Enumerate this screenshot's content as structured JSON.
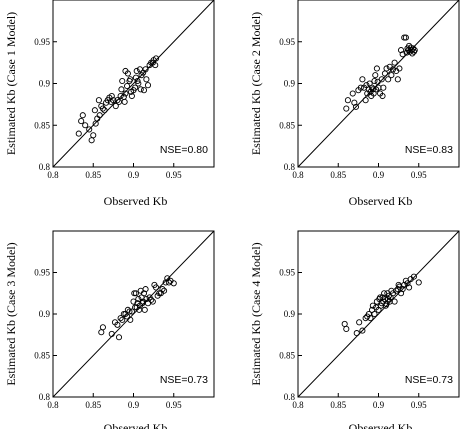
{
  "chart_data": [
    {
      "type": "scatter",
      "xlabel": "Observed Kb",
      "ylabel": "Estimated Kb (Case 1 Model)",
      "annotation": "NSE=0.80",
      "xlim": [
        0.8,
        1.0
      ],
      "ylim": [
        0.8,
        1.0
      ],
      "xticks": [
        "0.8",
        "0.85",
        "0.9",
        "0.95"
      ],
      "yticks": [
        "0.8",
        "0.85",
        "0.9",
        "0.95"
      ],
      "reference_line": "1:1",
      "x": [
        0.832,
        0.835,
        0.837,
        0.84,
        0.845,
        0.848,
        0.85,
        0.852,
        0.853,
        0.855,
        0.857,
        0.858,
        0.86,
        0.862,
        0.864,
        0.866,
        0.868,
        0.87,
        0.872,
        0.873,
        0.875,
        0.878,
        0.88,
        0.882,
        0.884,
        0.885,
        0.886,
        0.888,
        0.889,
        0.89,
        0.89,
        0.892,
        0.893,
        0.895,
        0.896,
        0.897,
        0.898,
        0.9,
        0.902,
        0.903,
        0.904,
        0.905,
        0.906,
        0.908,
        0.909,
        0.91,
        0.912,
        0.913,
        0.915,
        0.916,
        0.918,
        0.92,
        0.922,
        0.924,
        0.925,
        0.927,
        0.928
      ],
      "y": [
        0.84,
        0.855,
        0.862,
        0.85,
        0.845,
        0.832,
        0.838,
        0.868,
        0.852,
        0.858,
        0.88,
        0.862,
        0.873,
        0.87,
        0.868,
        0.877,
        0.88,
        0.883,
        0.878,
        0.885,
        0.88,
        0.873,
        0.88,
        0.878,
        0.885,
        0.893,
        0.903,
        0.884,
        0.878,
        0.888,
        0.915,
        0.897,
        0.912,
        0.903,
        0.905,
        0.89,
        0.885,
        0.892,
        0.895,
        0.907,
        0.915,
        0.903,
        0.9,
        0.917,
        0.893,
        0.91,
        0.913,
        0.892,
        0.917,
        0.905,
        0.898,
        0.922,
        0.925,
        0.925,
        0.928,
        0.922,
        0.93
      ]
    },
    {
      "type": "scatter",
      "xlabel": "Observed Kb",
      "ylabel": "Estimated Kb (Case 2 Model)",
      "annotation": "NSE=0.83",
      "xlim": [
        0.8,
        1.0
      ],
      "ylim": [
        0.8,
        1.0
      ],
      "xticks": [
        "0.8",
        "0.85",
        "0.9",
        "0.95"
      ],
      "yticks": [
        "0.8",
        "0.85",
        "0.9",
        "0.95"
      ],
      "reference_line": "1:1",
      "x": [
        0.86,
        0.862,
        0.868,
        0.87,
        0.872,
        0.875,
        0.878,
        0.88,
        0.882,
        0.884,
        0.885,
        0.886,
        0.888,
        0.889,
        0.89,
        0.891,
        0.892,
        0.893,
        0.894,
        0.895,
        0.896,
        0.897,
        0.898,
        0.899,
        0.9,
        0.902,
        0.904,
        0.905,
        0.906,
        0.908,
        0.91,
        0.912,
        0.914,
        0.916,
        0.918,
        0.92,
        0.922,
        0.924,
        0.926,
        0.928,
        0.93,
        0.932,
        0.934,
        0.935,
        0.936,
        0.937,
        0.938,
        0.939,
        0.94,
        0.941,
        0.942,
        0.943,
        0.944,
        0.945
      ],
      "y": [
        0.87,
        0.88,
        0.888,
        0.877,
        0.872,
        0.892,
        0.895,
        0.905,
        0.895,
        0.88,
        0.898,
        0.888,
        0.893,
        0.9,
        0.89,
        0.885,
        0.895,
        0.893,
        0.888,
        0.903,
        0.91,
        0.893,
        0.918,
        0.902,
        0.895,
        0.888,
        0.905,
        0.885,
        0.895,
        0.912,
        0.918,
        0.905,
        0.92,
        0.91,
        0.917,
        0.925,
        0.915,
        0.905,
        0.918,
        0.94,
        0.935,
        0.955,
        0.955,
        0.937,
        0.942,
        0.94,
        0.945,
        0.938,
        0.943,
        0.94,
        0.936,
        0.942,
        0.938,
        0.94
      ]
    },
    {
      "type": "scatter",
      "xlabel": "Observed Kb",
      "ylabel": "Estimated Kb (Case 3 Model)",
      "annotation": "NSE=0.73",
      "xlim": [
        0.8,
        1.0
      ],
      "ylim": [
        0.8,
        1.0
      ],
      "xticks": [
        "0.8",
        "0.85",
        "0.9",
        "0.95"
      ],
      "yticks": [
        "0.8",
        "0.85",
        "0.9",
        "0.95"
      ],
      "reference_line": "1:1",
      "x": [
        0.86,
        0.862,
        0.873,
        0.877,
        0.88,
        0.882,
        0.884,
        0.886,
        0.888,
        0.89,
        0.892,
        0.893,
        0.895,
        0.896,
        0.898,
        0.9,
        0.901,
        0.902,
        0.903,
        0.904,
        0.905,
        0.906,
        0.907,
        0.908,
        0.909,
        0.91,
        0.911,
        0.912,
        0.913,
        0.914,
        0.915,
        0.916,
        0.918,
        0.92,
        0.922,
        0.924,
        0.926,
        0.928,
        0.93,
        0.932,
        0.934,
        0.936,
        0.938,
        0.94,
        0.942,
        0.944,
        0.946,
        0.95
      ],
      "y": [
        0.878,
        0.884,
        0.876,
        0.89,
        0.887,
        0.872,
        0.895,
        0.893,
        0.9,
        0.9,
        0.897,
        0.905,
        0.903,
        0.893,
        0.903,
        0.915,
        0.925,
        0.908,
        0.925,
        0.908,
        0.913,
        0.918,
        0.905,
        0.91,
        0.928,
        0.92,
        0.913,
        0.915,
        0.925,
        0.905,
        0.93,
        0.918,
        0.913,
        0.92,
        0.917,
        0.915,
        0.935,
        0.932,
        0.922,
        0.925,
        0.925,
        0.93,
        0.928,
        0.938,
        0.943,
        0.938,
        0.94,
        0.937
      ]
    },
    {
      "type": "scatter",
      "xlabel": "Observed Kb",
      "ylabel": "Estimated Kb (Case 4 Model)",
      "annotation": "NSE=0.73",
      "xlim": [
        0.8,
        1.0
      ],
      "ylim": [
        0.8,
        1.0
      ],
      "xticks": [
        "0.8",
        "0.85",
        "0.9",
        "0.95"
      ],
      "yticks": [
        "0.8",
        "0.85",
        "0.9",
        "0.95"
      ],
      "reference_line": "1:1",
      "x": [
        0.858,
        0.86,
        0.873,
        0.876,
        0.88,
        0.884,
        0.886,
        0.888,
        0.89,
        0.892,
        0.893,
        0.895,
        0.897,
        0.898,
        0.9,
        0.901,
        0.902,
        0.903,
        0.904,
        0.905,
        0.906,
        0.907,
        0.908,
        0.909,
        0.91,
        0.911,
        0.912,
        0.913,
        0.914,
        0.915,
        0.916,
        0.918,
        0.92,
        0.922,
        0.924,
        0.925,
        0.926,
        0.928,
        0.93,
        0.932,
        0.934,
        0.936,
        0.938,
        0.94,
        0.944,
        0.95
      ],
      "y": [
        0.888,
        0.882,
        0.877,
        0.89,
        0.88,
        0.895,
        0.897,
        0.9,
        0.895,
        0.905,
        0.91,
        0.9,
        0.908,
        0.915,
        0.905,
        0.918,
        0.92,
        0.91,
        0.913,
        0.92,
        0.915,
        0.925,
        0.918,
        0.91,
        0.912,
        0.925,
        0.918,
        0.922,
        0.915,
        0.92,
        0.928,
        0.925,
        0.915,
        0.928,
        0.93,
        0.935,
        0.933,
        0.925,
        0.93,
        0.935,
        0.94,
        0.937,
        0.932,
        0.942,
        0.945,
        0.938
      ]
    }
  ]
}
